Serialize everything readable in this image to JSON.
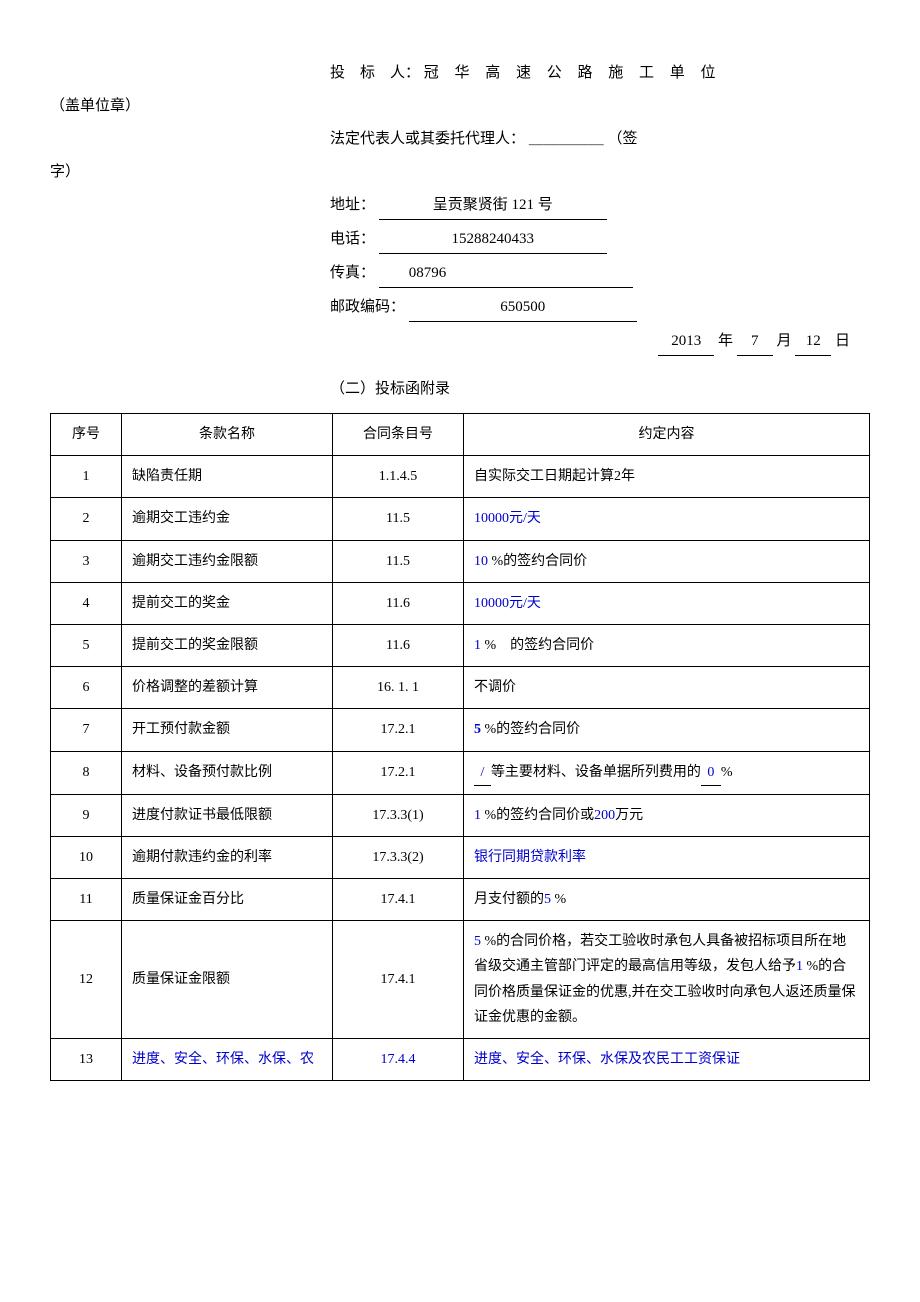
{
  "header": {
    "bidder_label": "投　标　人：",
    "bidder_value": "冠 华 高 速 公 路 施 工 单 位",
    "seal_note": "（盖单位章）",
    "legal_rep_label": "法定代表人或其委托代理人：",
    "legal_rep_blank": "＿＿＿＿＿",
    "sign_note_open": "（签",
    "sign_note_close": "字）",
    "address_label": "地址：",
    "address_value": "呈贡聚贤街 121 号",
    "phone_label": "电话：",
    "phone_value": "15288240433",
    "fax_label": "传真：",
    "fax_value": "08796",
    "postal_label": "邮政编码：",
    "postal_value": "650500",
    "date_year": "2013",
    "date_year_unit": "年",
    "date_month": "7",
    "date_month_unit": "月",
    "date_day": "12",
    "date_day_unit": "日"
  },
  "section_title": "（二）投标函附录",
  "table": {
    "headers": [
      "序号",
      "条款名称",
      "合同条目号",
      "约定内容"
    ],
    "rows": [
      {
        "seq": "1",
        "name": "缺陷责任期",
        "ref": "1.1.4.5",
        "content": "自实际交工日期起计算2年",
        "content_blue_parts": [
          "2"
        ]
      },
      {
        "seq": "2",
        "name": "逾期交工违约金",
        "ref": "11.5",
        "content": "10000元/天",
        "content_class": "blue"
      },
      {
        "seq": "3",
        "name": "逾期交工违约金限额",
        "ref": "11.5",
        "content_html": "<span class='blue'>10</span> %的签约合同价"
      },
      {
        "seq": "4",
        "name": "提前交工的奖金",
        "ref": "11.6",
        "content": "10000元/天",
        "content_class": "blue"
      },
      {
        "seq": "5",
        "name": "提前交工的奖金限额",
        "ref": "11.6",
        "content_html": "<span class='blue'>1</span> %　的签约合同价"
      },
      {
        "seq": "6",
        "name": "价格调整的差额计算",
        "ref": "16. 1. 1",
        "content": "不调价"
      },
      {
        "seq": "7",
        "name": "开工预付款金额",
        "ref": "17.2.1",
        "content_html": "<span class='blue'><b>5</b></span> %的签约合同价"
      },
      {
        "seq": "8",
        "name": "材料、设备预付款比例",
        "ref": "17.2.1",
        "content_html": "<span class='blue u'>&nbsp;/&nbsp;</span>等主要材料、设备单据所列费用的<span class='blue u'>&nbsp;0&nbsp;</span>%"
      },
      {
        "seq": "9",
        "name": "进度付款证书最低限额",
        "ref": "17.3.3(1)",
        "content_html": "<span class='blue'>1</span> %的签约合同价或<span class='blue'>200</span>万元"
      },
      {
        "seq": "10",
        "name": "逾期付款违约金的利率",
        "ref": "17.3.3(2)",
        "content": "银行同期贷款利率",
        "content_class": "blue"
      },
      {
        "seq": "11",
        "name": "质量保证金百分比",
        "ref": "17.4.1",
        "content_html": "月支付额的<span class='blue'>5</span> %"
      },
      {
        "seq": "12",
        "name": "质量保证金限额",
        "ref": "17.4.1",
        "content_html": "<span class='blue'>5</span> %的合同价格，若交工验收时承包人具备被招标项目所在地省级交通主管部门评定的最高信用等级，发包人给予<span class='blue'>1</span> %的合同价格质量保证金的优惠,并在交工验收时向承包人返还质量保证金优惠的金额。"
      },
      {
        "seq": "13",
        "name": "进度、安全、环保、水保、农",
        "name_class": "blue",
        "ref": "17.4.4",
        "ref_class": "blue",
        "content": "进度、安全、环保、水保及农民工工资保证",
        "content_class": "blue"
      }
    ]
  }
}
